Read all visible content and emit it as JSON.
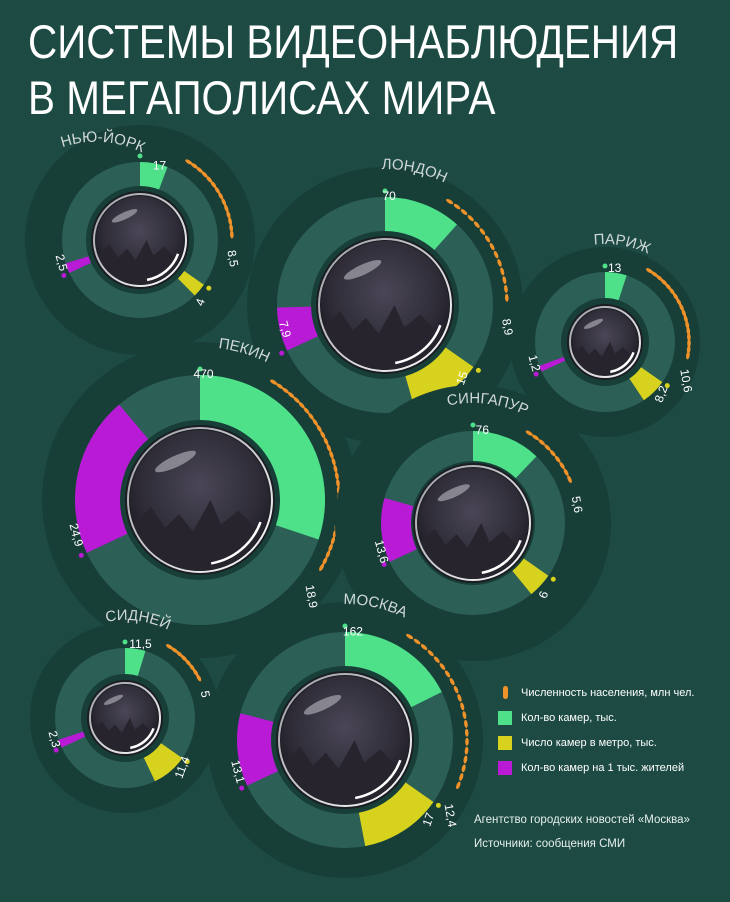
{
  "title": {
    "line1": "СИСТЕМЫ ВИДЕОНАБЛЮДЕНИЯ",
    "line2": "В МЕГАПОЛИСАХ МИРА"
  },
  "colors": {
    "background": "#1d4b43",
    "disc": "#173e37",
    "ring": "#2c5f55",
    "cameras": "#4fe08a",
    "metro": "#d6d21e",
    "per_1000": "#b81ad6",
    "population": "#f0922a"
  },
  "legend": {
    "population": "Численность населения, млн чел.",
    "cameras": "Кол-во камер, тыс.",
    "metro": "Число камер в метро, тыс.",
    "per_1000": "Кол-во камер на 1 тыс. жителей"
  },
  "credits": {
    "agency": "Агентство городских новостей «Москва»",
    "sources": "Источники: сообщения СМИ"
  },
  "chart_data": {
    "type": "radial-gauge",
    "title": "СИСТЕМЫ ВИДЕОНАБЛЮДЕНИЯ В МЕГАПОЛИСАХ МИРА",
    "series_names": [
      "Численность населения, млн чел.",
      "Кол-во камер, тыс.",
      "Число камер в метро, тыс.",
      "Кол-во камер на 1 тыс. жителей"
    ],
    "cities": [
      {
        "name": "НЬЮ-ЙОРК",
        "population": "8,5",
        "cameras": "17",
        "metro": "4",
        "per_1000": "2,5",
        "v": {
          "population": 8.5,
          "cameras": 17,
          "metro": 4,
          "per_1000": 2.5
        }
      },
      {
        "name": "ЛОНДОН",
        "population": "8,9",
        "cameras": "70",
        "metro": "15",
        "per_1000": "7,9",
        "v": {
          "population": 8.9,
          "cameras": 70,
          "metro": 15,
          "per_1000": 7.9
        }
      },
      {
        "name": "ПАРИЖ",
        "population": "10,6",
        "cameras": "13",
        "metro": "8,2",
        "per_1000": "1,2",
        "v": {
          "population": 10.6,
          "cameras": 13,
          "metro": 8.2,
          "per_1000": 1.2
        }
      },
      {
        "name": "ПЕКИН",
        "population": "18,9",
        "cameras": "470",
        "metro": null,
        "per_1000": "24,9",
        "v": {
          "population": 18.9,
          "cameras": 470,
          "metro": null,
          "per_1000": 24.9
        }
      },
      {
        "name": "СИНГАПУР",
        "population": "5,6",
        "cameras": "76",
        "metro": "6",
        "per_1000": "13,6",
        "v": {
          "population": 5.6,
          "cameras": 76,
          "metro": 6,
          "per_1000": 13.6
        }
      },
      {
        "name": "СИДНЕЙ",
        "population": "5",
        "cameras": "11,5",
        "metro": "11,4",
        "per_1000": "2,3",
        "v": {
          "population": 5,
          "cameras": 11.5,
          "metro": 11.4,
          "per_1000": 2.3
        }
      },
      {
        "name": "МОСКВА",
        "population": "12,4",
        "cameras": "162",
        "metro": "17",
        "per_1000": "13,1",
        "v": {
          "population": 12.4,
          "cameras": 162,
          "metro": 17,
          "per_1000": 13.1
        }
      }
    ]
  }
}
